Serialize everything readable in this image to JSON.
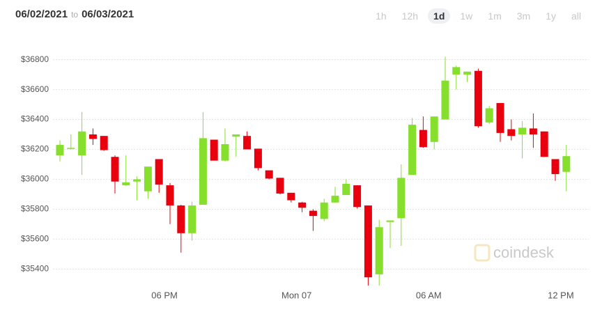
{
  "header": {
    "from": "06/02/2021",
    "to_word": "to",
    "to": "06/03/2021"
  },
  "ranges": [
    "1h",
    "12h",
    "1d",
    "1w",
    "1m",
    "3m",
    "1y",
    "all"
  ],
  "selected_range": "1d",
  "watermark": "coindesk",
  "chart_data": {
    "type": "candlestick",
    "categories": [
      null,
      null,
      null,
      null,
      null,
      null,
      null,
      null,
      null,
      null,
      "06 PM",
      null,
      null,
      null,
      null,
      null,
      null,
      null,
      null,
      null,
      null,
      null,
      "Mon 07",
      null,
      null,
      null,
      null,
      null,
      null,
      null,
      null,
      null,
      null,
      null,
      "06 AM",
      null,
      null,
      null,
      null,
      null,
      null,
      null,
      null,
      null,
      null,
      null,
      "12 PM"
    ],
    "open": [
      36160,
      36205,
      36160,
      36300,
      36290,
      36150,
      35960,
      35985,
      35920,
      36135,
      35960,
      35825,
      35640,
      35830,
      36265,
      36125,
      36285,
      36290,
      36205,
      36060,
      36010,
      35910,
      35845,
      35790,
      35735,
      35845,
      35895,
      35960,
      35825,
      35365,
      35715,
      35740,
      36030,
      36330,
      36250,
      36400,
      36700,
      36700,
      36725,
      36380,
      36510,
      36335,
      36300,
      36340,
      36320,
      36135,
      36050
    ],
    "high": [
      36260,
      36300,
      36450,
      36340,
      36290,
      36160,
      36160,
      36020,
      36085,
      36135,
      35975,
      35830,
      35850,
      36450,
      36265,
      36340,
      36300,
      36320,
      36205,
      36060,
      36010,
      35910,
      35850,
      35800,
      35870,
      35950,
      36000,
      35960,
      35825,
      35730,
      35725,
      36100,
      36410,
      36420,
      36420,
      36820,
      36760,
      36720,
      36740,
      36490,
      36510,
      36400,
      36390,
      36440,
      36320,
      36135,
      36230
    ],
    "low": [
      36120,
      36200,
      36030,
      36230,
      36190,
      35905,
      35955,
      35860,
      35870,
      35910,
      35700,
      35510,
      35590,
      35830,
      36125,
      36120,
      36150,
      36200,
      36060,
      36000,
      35900,
      35845,
      35780,
      35655,
      35720,
      35845,
      35895,
      35805,
      35290,
      35290,
      35540,
      35555,
      36030,
      36210,
      36200,
      36400,
      36600,
      36650,
      36345,
      36370,
      36250,
      36260,
      36140,
      36210,
      36150,
      35990,
      35920
    ],
    "close": [
      36230,
      36210,
      36320,
      36270,
      36195,
      35985,
      35980,
      36000,
      36085,
      35965,
      35825,
      35640,
      35825,
      36275,
      36125,
      36235,
      36300,
      36200,
      36075,
      36005,
      35905,
      35860,
      35810,
      35755,
      35845,
      35890,
      35970,
      35815,
      35345,
      35680,
      35725,
      36010,
      36365,
      36215,
      36420,
      36660,
      36750,
      36720,
      36355,
      36475,
      36310,
      36290,
      36345,
      36300,
      36150,
      36035,
      36155
    ],
    "up_color": "#86df2c",
    "down_color": "#e8000e",
    "ylim": [
      35290,
      36910
    ],
    "yticks": [
      {
        "value": 35400,
        "label": "$35400"
      },
      {
        "value": 35600,
        "label": "$35600"
      },
      {
        "value": 35800,
        "label": "$35800"
      },
      {
        "value": 36000,
        "label": "$36000"
      },
      {
        "value": 36200,
        "label": "$36200"
      },
      {
        "value": 36400,
        "label": "$36400"
      },
      {
        "value": 36600,
        "label": "$36600"
      },
      {
        "value": 36800,
        "label": "$36800"
      }
    ],
    "grid": true
  }
}
